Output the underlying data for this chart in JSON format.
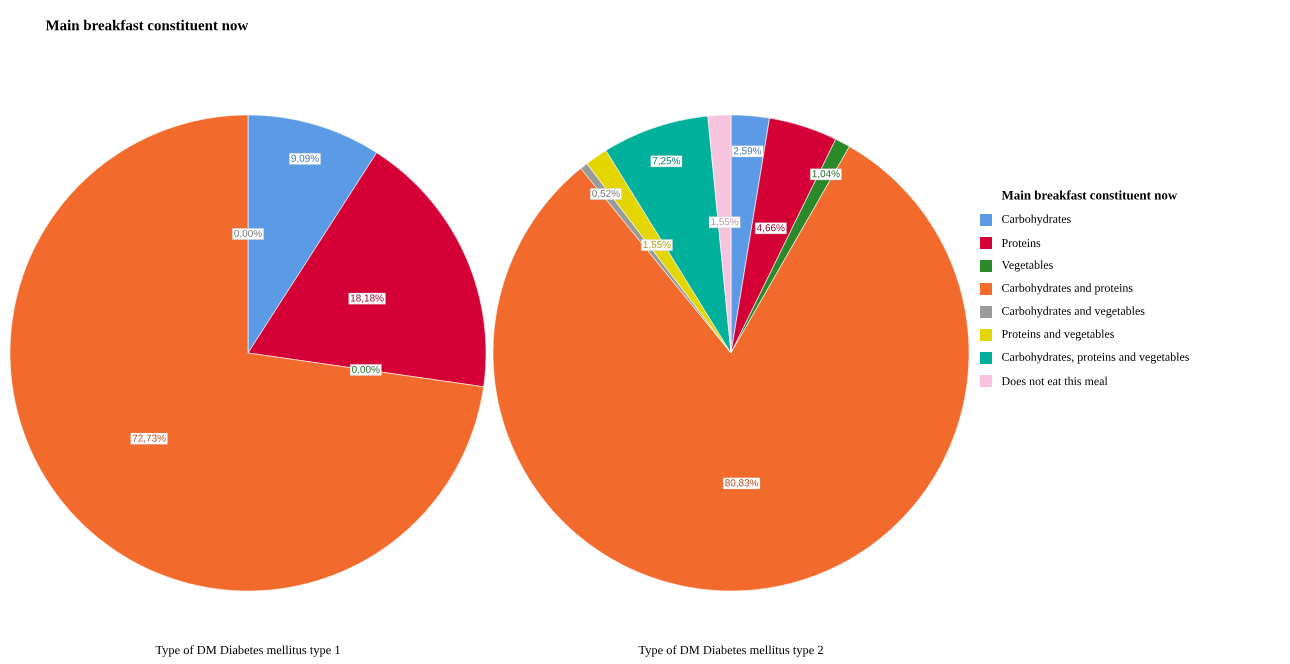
{
  "chart_data": [
    {
      "type": "pie",
      "title": "Main breakfast constituent now",
      "xlabel": "Type of DM Diabetes mellitus type 1",
      "categories": [
        null,
        null,
        null,
        null,
        null,
        null,
        null,
        null
      ],
      "values": [
        9.09,
        18.18,
        0.0,
        72.73,
        0.0,
        0.0,
        0.0,
        0.0
      ],
      "value_labels": [
        "9,09%",
        "18,18%",
        "0,00%",
        "72,73%",
        "0,00%",
        null,
        null,
        null
      ],
      "colors": [
        "#5b9be6",
        "#d40036",
        "#2a8a2a",
        "#f26a2c",
        "#9a9a9a",
        "#e3d600",
        "#00b09b",
        "#f8c3df"
      ],
      "legend": false
    },
    {
      "type": "pie",
      "xlabel": "Type of DM Diabetes mellitus type 2",
      "legend_title": "Main breakfast constituent now",
      "categories": [
        "Carbohydrates",
        "Proteins",
        "Vegetables",
        "Carbohydrates and proteins",
        "Carbohydrates and vegetables",
        "Proteins and vegetables",
        "Carbohydrates, proteins and vegetables",
        "Does not eat this meal"
      ],
      "values": [
        2.59,
        4.66,
        1.04,
        80.83,
        0.52,
        1.55,
        7.25,
        1.55
      ],
      "value_labels": [
        "2,59%",
        "4,66%",
        "1,04%",
        "80,83%",
        "0,52%",
        "1,55%",
        "7,25%",
        "1,55%"
      ],
      "colors": [
        "#5b9be6",
        "#d40036",
        "#2a8a2a",
        "#f26a2c",
        "#9a9a9a",
        "#e3d600",
        "#00b09b",
        "#f8c3df"
      ],
      "legend": "right"
    }
  ]
}
